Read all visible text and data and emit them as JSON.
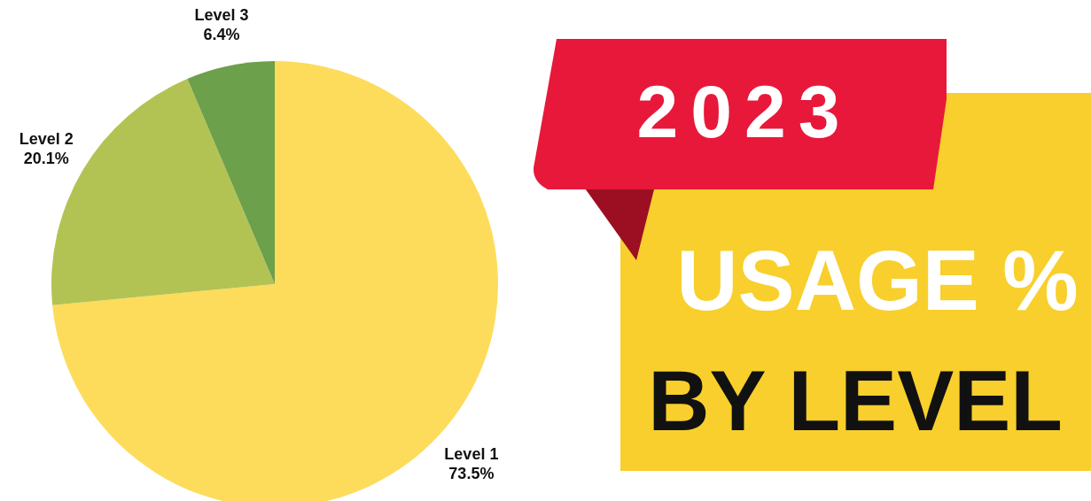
{
  "chart_data": {
    "type": "pie",
    "title": "USAGE %",
    "subtitle": "BY LEVEL",
    "annotations": [
      "2023"
    ],
    "categories": [
      "Level 1",
      "Level 2",
      "Level 3"
    ],
    "values": [
      73.5,
      20.1,
      6.4
    ],
    "value_labels": [
      "73.5%",
      "20.1%",
      "6.4%"
    ],
    "colors": [
      "#fddc5c",
      "#b3c353",
      "#6ca04b"
    ],
    "legend": false
  }
}
